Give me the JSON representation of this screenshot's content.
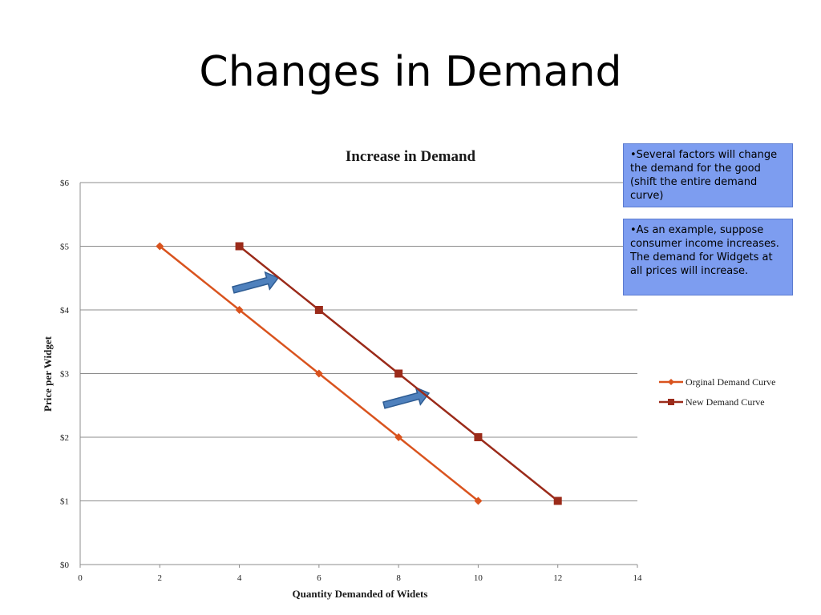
{
  "slide": {
    "title": "Changes in Demand"
  },
  "notes": [
    "•Several factors will change the demand for the good (shift the entire demand curve)",
    "•As an example, suppose consumer income increases. The demand for Widgets at all prices will increase."
  ],
  "chart_data": {
    "type": "line",
    "title": "Increase in Demand",
    "xlabel": "Quantity Demanded of Widets",
    "ylabel": "Price per Widget",
    "xlim": [
      0,
      14
    ],
    "ylim": [
      0,
      6
    ],
    "x_ticks": [
      "0",
      "2",
      "4",
      "6",
      "8",
      "10",
      "12",
      "14"
    ],
    "y_ticks": [
      "$0",
      "$1",
      "$2",
      "$3",
      "$4",
      "$5",
      "$6"
    ],
    "grid": true,
    "legend_position": "right",
    "series": [
      {
        "name": "Orginal Demand Curve",
        "color": "#d9531e",
        "marker": "diamond",
        "x": [
          2,
          4,
          6,
          8,
          10
        ],
        "y": [
          5,
          4,
          3,
          2,
          1
        ]
      },
      {
        "name": "New Demand Curve",
        "color": "#9b2b1a",
        "marker": "square",
        "x": [
          4,
          6,
          8,
          10,
          12
        ],
        "y": [
          5,
          4,
          3,
          2,
          1
        ]
      }
    ],
    "annotations": [
      "shift-right-arrow",
      "shift-right-arrow"
    ],
    "arrow_color": "#4f81bd"
  }
}
